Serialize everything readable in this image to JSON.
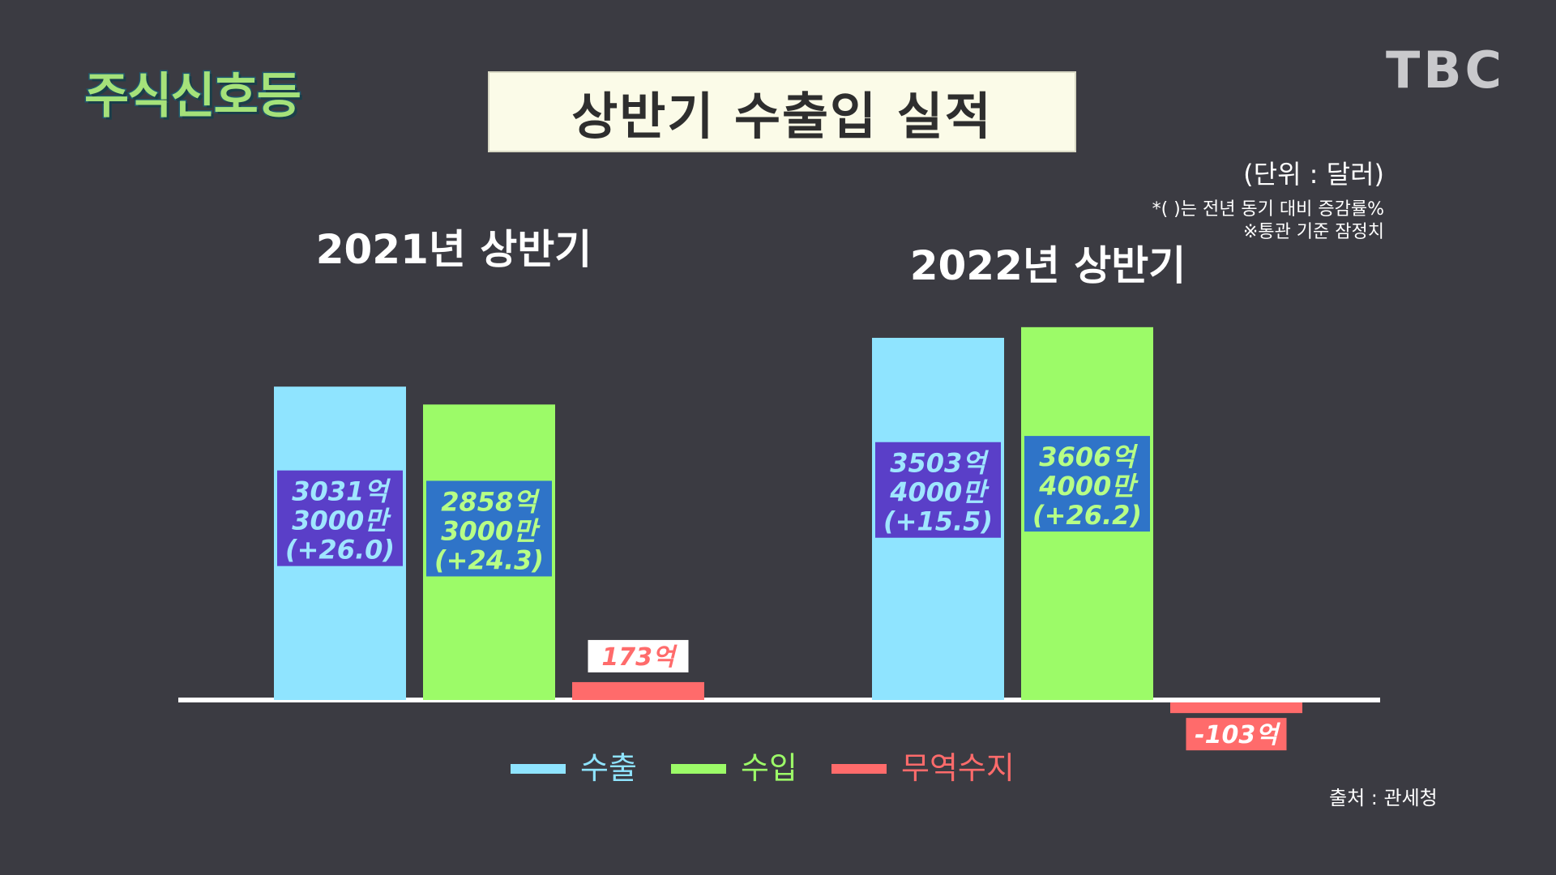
{
  "logo": "주식신호등",
  "broadcaster": "TBC",
  "title": "상반기 수출입 실적",
  "unit_label": "(단위 : 달러)",
  "note1": "*( )는 전년 동기 대비 증감률%",
  "note2": "※통관 기준 잠정치",
  "source": "출처 : 관세청",
  "colors": {
    "export": "#8fe4ff",
    "import": "#9cfb68",
    "balance": "#ff6b6b",
    "export_label_bg": "#5a3fc8",
    "import_label_bg": "#2f74c8",
    "background": "#3b3b42"
  },
  "chart_data": {
    "type": "bar",
    "categories": [
      "2021년 상반기",
      "2022년 상반기"
    ],
    "series": [
      {
        "name": "수출",
        "values": [
          3031.3,
          3503.4
        ],
        "labels": [
          [
            "3031억",
            "3000만",
            "(+26.0)"
          ],
          [
            "3503억",
            "4000만",
            "(+15.5)"
          ]
        ]
      },
      {
        "name": "수입",
        "values": [
          2858.3,
          3606.4
        ],
        "labels": [
          [
            "2858억",
            "3000만",
            "(+24.3)"
          ],
          [
            "3606억",
            "4000만",
            "(+26.2)"
          ]
        ]
      },
      {
        "name": "무역수지",
        "values": [
          173,
          -103
        ],
        "labels": [
          [
            "173억"
          ],
          [
            "-103억"
          ]
        ]
      }
    ],
    "ylabel": "",
    "unit": "억 달러",
    "grid": false,
    "legend_position": "bottom-center"
  }
}
